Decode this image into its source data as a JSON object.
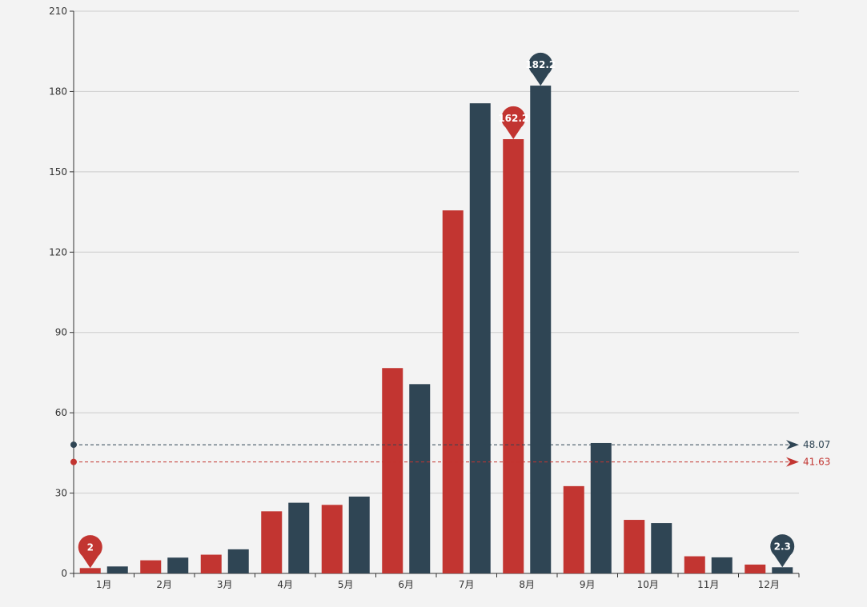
{
  "colors": {
    "background": "#f3f3f3",
    "series_1": "#c23531",
    "series_2": "#2f4554",
    "gridline": "#cccccc",
    "axis": "#333333",
    "tick_text": "#333333",
    "marker_text": "#ffffff"
  },
  "chart_data": {
    "type": "bar",
    "categories": [
      "1月",
      "2月",
      "3月",
      "4月",
      "5月",
      "6月",
      "7月",
      "8月",
      "9月",
      "10月",
      "11月",
      "12月"
    ],
    "series": [
      {
        "values": [
          2.0,
          4.9,
          7.0,
          23.2,
          25.6,
          76.7,
          135.6,
          162.2,
          32.6,
          20.0,
          6.4,
          3.3
        ],
        "color": "#c23531",
        "markers": [
          {
            "label": "162.2",
            "category": "8月",
            "value": 162.2,
            "kind": "max"
          },
          {
            "label": "2",
            "category": "1月",
            "value": 2.0,
            "kind": "min"
          }
        ],
        "average": {
          "value": 41.63,
          "label": "41.63"
        }
      },
      {
        "values": [
          2.6,
          5.9,
          9.0,
          26.4,
          28.7,
          70.7,
          175.6,
          182.2,
          48.7,
          18.8,
          6.0,
          2.3
        ],
        "color": "#2f4554",
        "markers": [
          {
            "label": "182.2",
            "category": "8月",
            "value": 182.2,
            "kind": "max"
          },
          {
            "label": "2.3",
            "category": "12月",
            "value": 2.3,
            "kind": "min"
          }
        ],
        "average": {
          "value": 48.07,
          "label": "48.07"
        }
      }
    ],
    "y_ticks": [
      "0",
      "30",
      "60",
      "90",
      "120",
      "150",
      "180",
      "210"
    ],
    "ylim": [
      0,
      210
    ],
    "grid": true,
    "legend": "none",
    "title": "",
    "xlabel": "",
    "ylabel": ""
  }
}
